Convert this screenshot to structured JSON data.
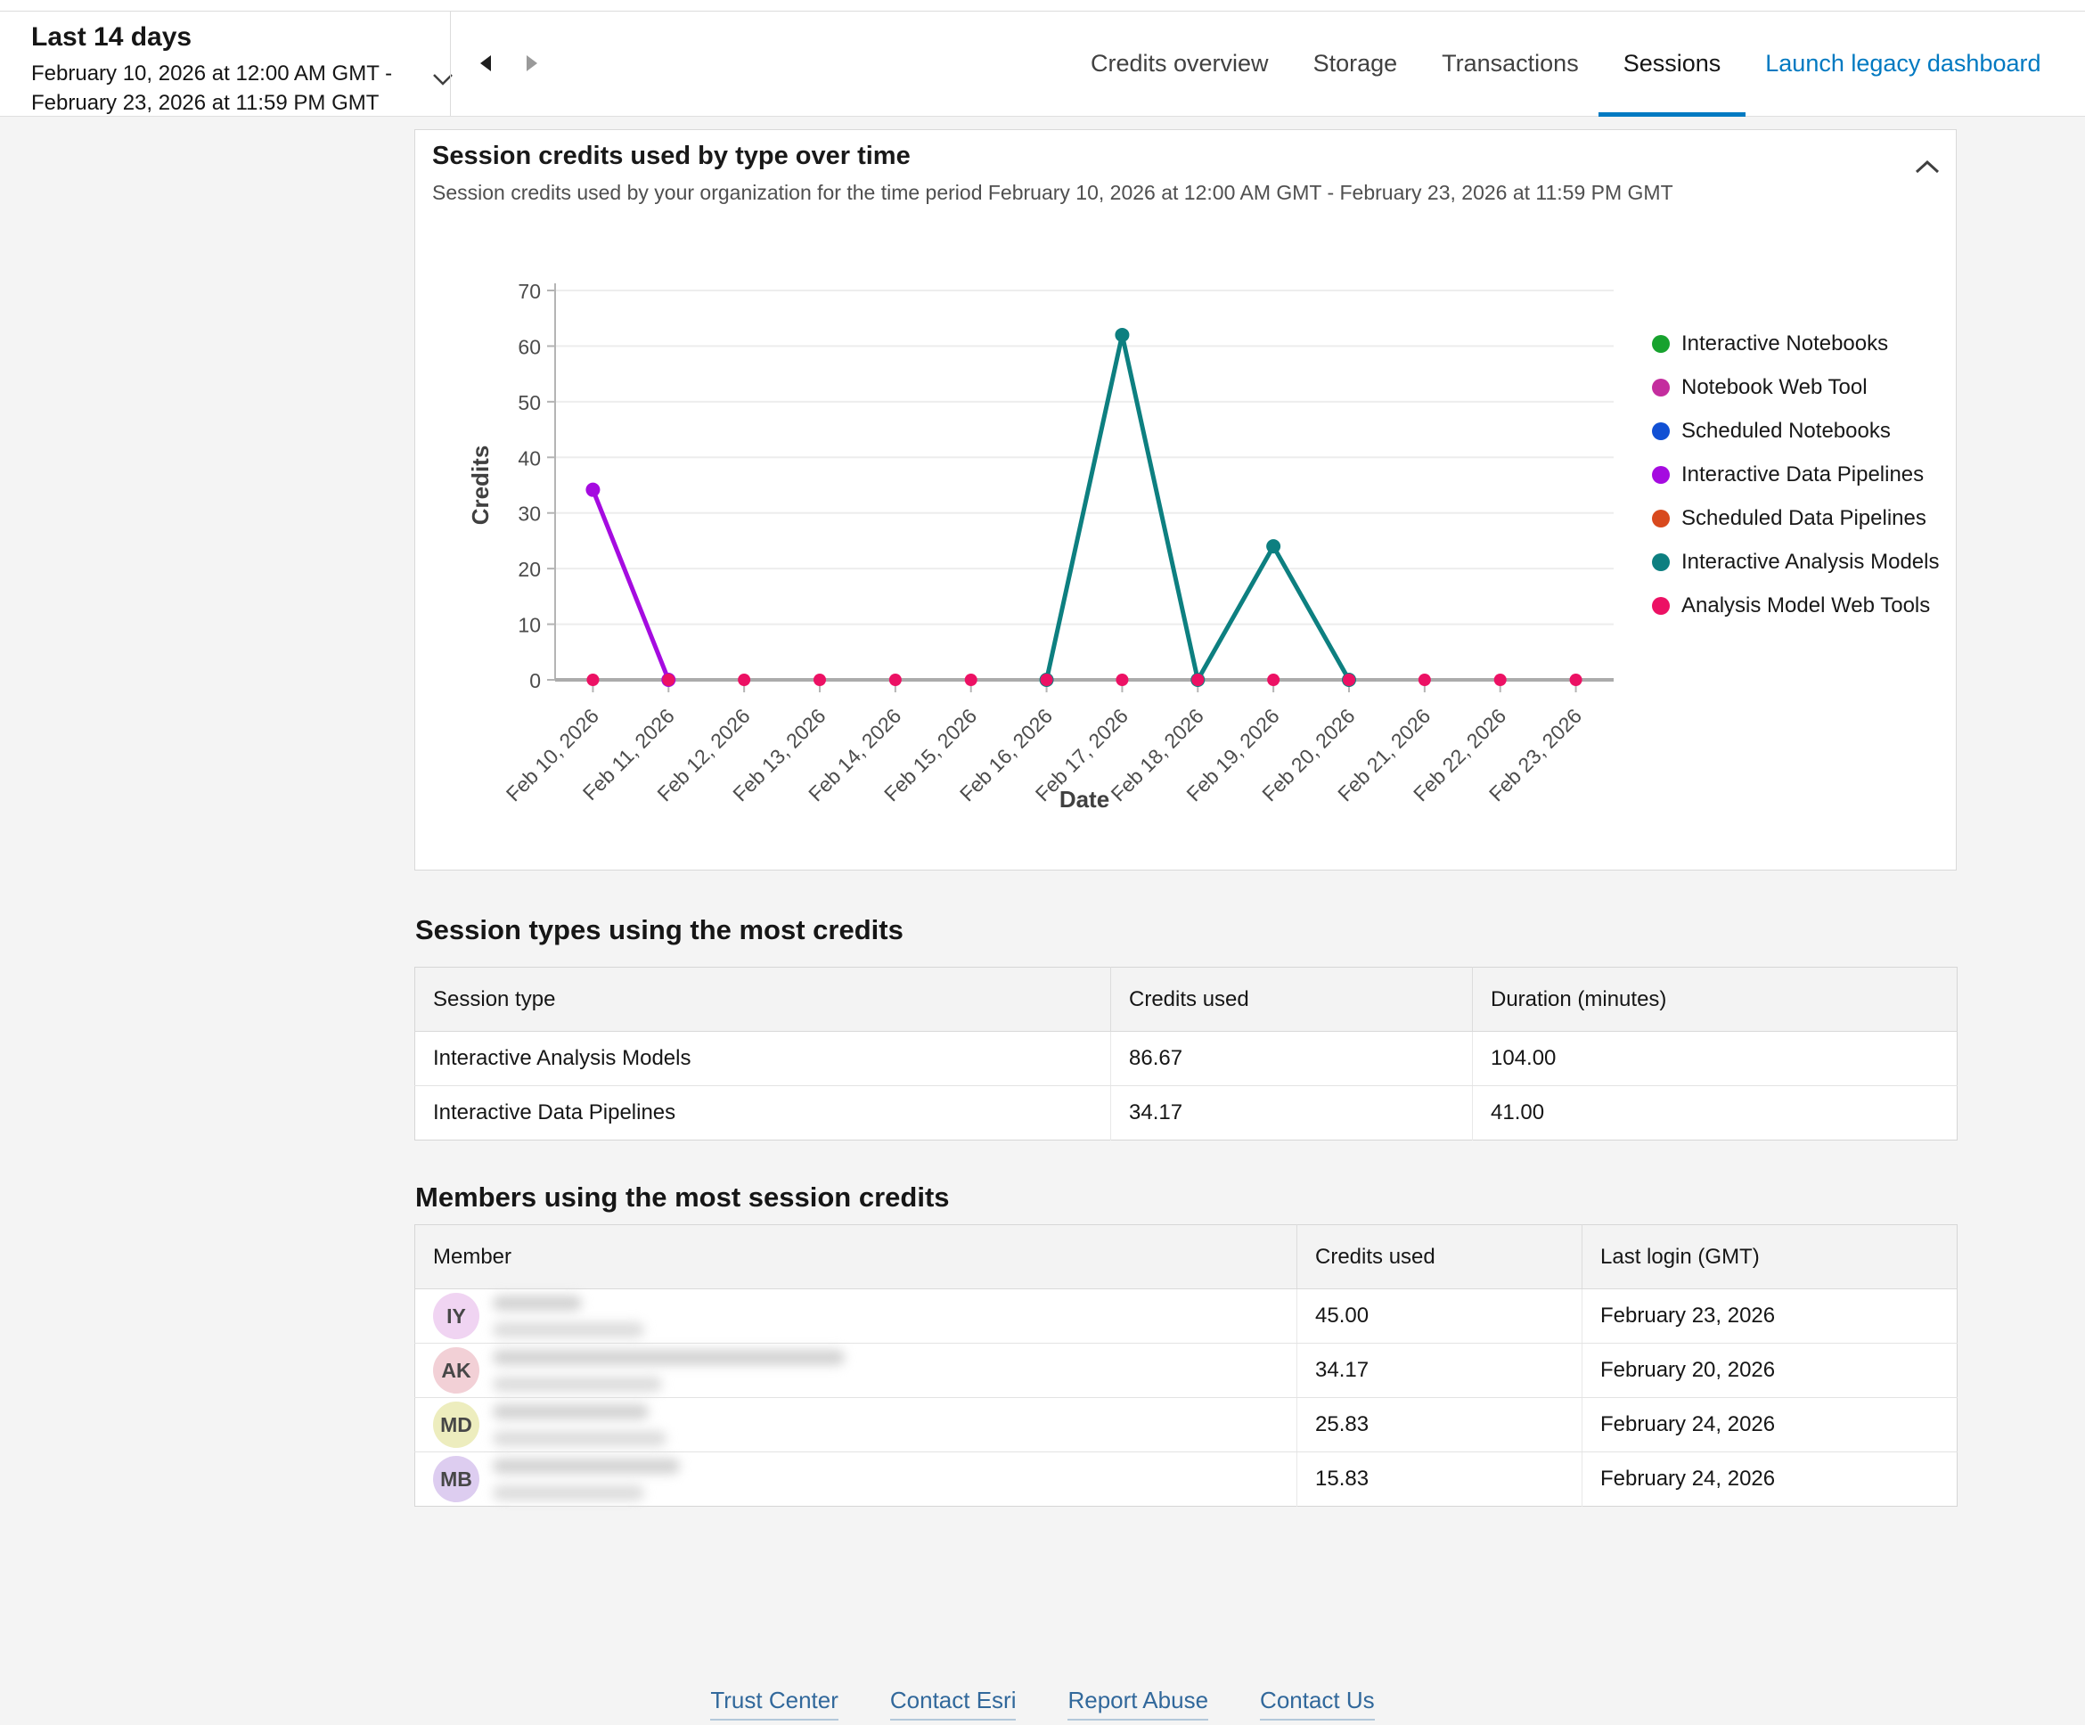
{
  "colors": {
    "accent_blue": "#007ac2",
    "link_blue": "#0079c1",
    "footer_link_blue": "#31689b",
    "page_background": "#f4f4f4"
  },
  "icons": {
    "date_range_expander": "chevron-down",
    "previous_period": "caret-left",
    "next_period": "caret-right",
    "collapse_card": "chevron-up",
    "legend_marker": "circle-dot"
  },
  "header": {
    "range_label": "Last 14 days",
    "range_dates": "February 10, 2026 at 12:00 AM GMT - February 23, 2026 at 11:59 PM GMT",
    "tabs": [
      {
        "label": "Credits overview",
        "active": false
      },
      {
        "label": "Storage",
        "active": false
      },
      {
        "label": "Transactions",
        "active": false
      },
      {
        "label": "Sessions",
        "active": true
      }
    ],
    "legacy_link_label": "Launch legacy dashboard"
  },
  "chart_card": {
    "title": "Session credits used by type over time",
    "subtitle": "Session credits used by your organization for the time period February 10, 2026 at 12:00 AM GMT - February 23, 2026 at 11:59 PM GMT"
  },
  "chart_data": {
    "type": "line",
    "title": "Session credits used by type over time",
    "xlabel": "Date",
    "ylabel": "Credits",
    "ylim": [
      0,
      70
    ],
    "ytick_step": 10,
    "grid": true,
    "legend_position": "right",
    "categories": [
      "Feb 10, 2026",
      "Feb 11, 2026",
      "Feb 12, 2026",
      "Feb 13, 2026",
      "Feb 14, 2026",
      "Feb 15, 2026",
      "Feb 16, 2026",
      "Feb 17, 2026",
      "Feb 18, 2026",
      "Feb 19, 2026",
      "Feb 20, 2026",
      "Feb 21, 2026",
      "Feb 22, 2026",
      "Feb 23, 2026"
    ],
    "series": [
      {
        "name": "Interactive Notebooks",
        "color": "#17a22e",
        "points": []
      },
      {
        "name": "Notebook Web Tool",
        "color": "#c42d9e",
        "points": []
      },
      {
        "name": "Scheduled Notebooks",
        "color": "#1150d4",
        "points": []
      },
      {
        "name": "Interactive Data Pipelines",
        "color": "#a50be0",
        "points": [
          {
            "x": "Feb 10, 2026",
            "y": 34.17
          },
          {
            "x": "Feb 11, 2026",
            "y": 0
          }
        ]
      },
      {
        "name": "Scheduled Data Pipelines",
        "color": "#d8491e",
        "points": []
      },
      {
        "name": "Interactive Analysis Models",
        "color": "#0d7f80",
        "points": [
          {
            "x": "Feb 16, 2026",
            "y": 0
          },
          {
            "x": "Feb 17, 2026",
            "y": 62
          },
          {
            "x": "Feb 18, 2026",
            "y": 0
          },
          {
            "x": "Feb 19, 2026",
            "y": 24
          },
          {
            "x": "Feb 20, 2026",
            "y": 0
          }
        ]
      },
      {
        "name": "Analysis Model Web Tools",
        "color": "#ec1164",
        "show_line": false,
        "points": [
          {
            "x": "Feb 10, 2026",
            "y": 0
          },
          {
            "x": "Feb 11, 2026",
            "y": 0
          },
          {
            "x": "Feb 12, 2026",
            "y": 0
          },
          {
            "x": "Feb 13, 2026",
            "y": 0
          },
          {
            "x": "Feb 14, 2026",
            "y": 0
          },
          {
            "x": "Feb 15, 2026",
            "y": 0
          },
          {
            "x": "Feb 16, 2026",
            "y": 0
          },
          {
            "x": "Feb 17, 2026",
            "y": 0
          },
          {
            "x": "Feb 18, 2026",
            "y": 0
          },
          {
            "x": "Feb 19, 2026",
            "y": 0
          },
          {
            "x": "Feb 20, 2026",
            "y": 0
          },
          {
            "x": "Feb 21, 2026",
            "y": 0
          },
          {
            "x": "Feb 22, 2026",
            "y": 0
          },
          {
            "x": "Feb 23, 2026",
            "y": 0
          }
        ]
      }
    ]
  },
  "session_types_table": {
    "heading": "Session types using the most credits",
    "columns": [
      "Session type",
      "Credits used",
      "Duration (minutes)"
    ],
    "rows": [
      [
        "Interactive Analysis Models",
        "86.67",
        "104.00"
      ],
      [
        "Interactive Data Pipelines",
        "34.17",
        "41.00"
      ]
    ]
  },
  "members_table": {
    "heading": "Members using the most session credits",
    "columns": [
      "Member",
      "Credits used",
      "Last login (GMT)"
    ],
    "rows": [
      {
        "initials": "IY",
        "avatar_color": "#f0d4f2",
        "credits": "45.00",
        "last_login": "February 23, 2026"
      },
      {
        "initials": "AK",
        "avatar_color": "#f2d0d6",
        "credits": "34.17",
        "last_login": "February 20, 2026"
      },
      {
        "initials": "MD",
        "avatar_color": "#ededbe",
        "credits": "25.83",
        "last_login": "February 24, 2026"
      },
      {
        "initials": "MB",
        "avatar_color": "#ddcdf0",
        "credits": "15.83",
        "last_login": "February 24, 2026"
      }
    ]
  },
  "footer": {
    "links": [
      "Trust Center",
      "Contact Esri",
      "Report Abuse",
      "Contact Us"
    ]
  }
}
